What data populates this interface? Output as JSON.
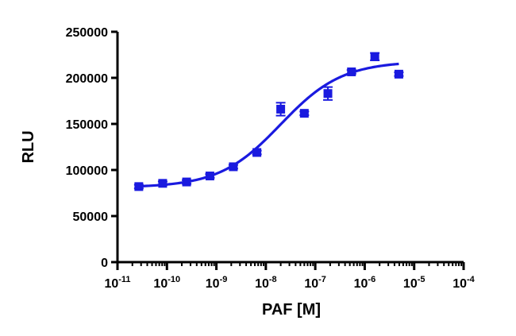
{
  "chart_data": {
    "type": "scatter",
    "title": "",
    "xlabel": "PAF [M]",
    "ylabel": "RLU",
    "x_scale": "log",
    "xlim": [
      1e-11,
      0.0001
    ],
    "ylim": [
      0,
      250000
    ],
    "x_tick_base": "10",
    "x_tick_exponents": [
      "-11",
      "-10",
      "-9",
      "-8",
      "-7",
      "-6",
      "-5",
      "-4"
    ],
    "y_ticks": [
      "0",
      "50000",
      "100000",
      "150000",
      "200000",
      "250000"
    ],
    "grid": false,
    "legend": "none",
    "series": [
      {
        "color": "#1a1adf",
        "marker": "square",
        "points": [
          {
            "x": 2.7e-11,
            "y": 82000,
            "err": 2000
          },
          {
            "x": 8.2e-11,
            "y": 85500,
            "err": 2000
          },
          {
            "x": 2.5e-10,
            "y": 87000,
            "err": 2000
          },
          {
            "x": 7.4e-10,
            "y": 93500,
            "err": 2000
          },
          {
            "x": 2.2e-09,
            "y": 103500,
            "err": 2000
          },
          {
            "x": 6.6e-09,
            "y": 119000,
            "err": 2000
          },
          {
            "x": 2e-08,
            "y": 166000,
            "err": 7000
          },
          {
            "x": 6e-08,
            "y": 161500,
            "err": 2000
          },
          {
            "x": 1.8e-07,
            "y": 183000,
            "err": 7000
          },
          {
            "x": 5.4e-07,
            "y": 206500,
            "err": 2000
          },
          {
            "x": 1.6e-06,
            "y": 223000,
            "err": 4000
          },
          {
            "x": 4.9e-06,
            "y": 204000,
            "err": 2000
          }
        ]
      }
    ],
    "fit": {
      "model": "sigmoidal dose-response",
      "bottom": 81000,
      "top": 218000,
      "log_ec50": -7.7,
      "hill_slope": 0.7,
      "x_range": [
        2.7e-11,
        4.9e-06
      ]
    }
  }
}
